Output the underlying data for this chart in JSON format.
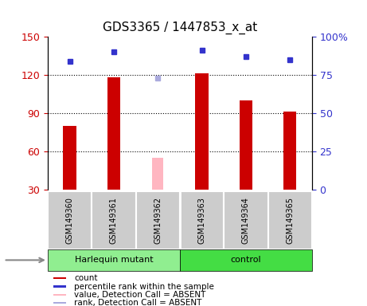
{
  "title": "GDS3365 / 1447853_x_at",
  "samples": [
    "GSM149360",
    "GSM149361",
    "GSM149362",
    "GSM149363",
    "GSM149364",
    "GSM149365"
  ],
  "count_values": [
    80,
    118,
    null,
    121,
    100,
    91
  ],
  "percentile_values": [
    84,
    90,
    null,
    91,
    87,
    85
  ],
  "absent_value": 55,
  "absent_rank": 73,
  "absent_index": 2,
  "ylim_left": [
    30,
    150
  ],
  "ylim_right": [
    0,
    100
  ],
  "yticks_left": [
    30,
    60,
    90,
    120,
    150
  ],
  "yticks_right": [
    0,
    25,
    50,
    75,
    100
  ],
  "ytick_right_labels": [
    "0",
    "25",
    "50",
    "75",
    "100%"
  ],
  "bar_color": "#CC0000",
  "blue_marker_color": "#3333CC",
  "absent_bar_color": "#FFB6C1",
  "absent_rank_color": "#AAAADD",
  "bg_color": "#FFFFFF",
  "plot_bg": "#FFFFFF",
  "left_tick_color": "#CC0000",
  "right_tick_color": "#3333CC",
  "bar_width": 0.3,
  "absent_bar_width": 0.25,
  "marker_size": 5,
  "group_label_left": "Harlequin mutant",
  "group_label_right": "control",
  "group_color_left": "#90EE90",
  "group_color_right": "#44DD44",
  "legend_items": [
    {
      "color": "#CC0000",
      "label": "count"
    },
    {
      "color": "#3333CC",
      "label": "percentile rank within the sample"
    },
    {
      "color": "#FFB6C1",
      "label": "value, Detection Call = ABSENT"
    },
    {
      "color": "#AAAADD",
      "label": "rank, Detection Call = ABSENT"
    }
  ]
}
